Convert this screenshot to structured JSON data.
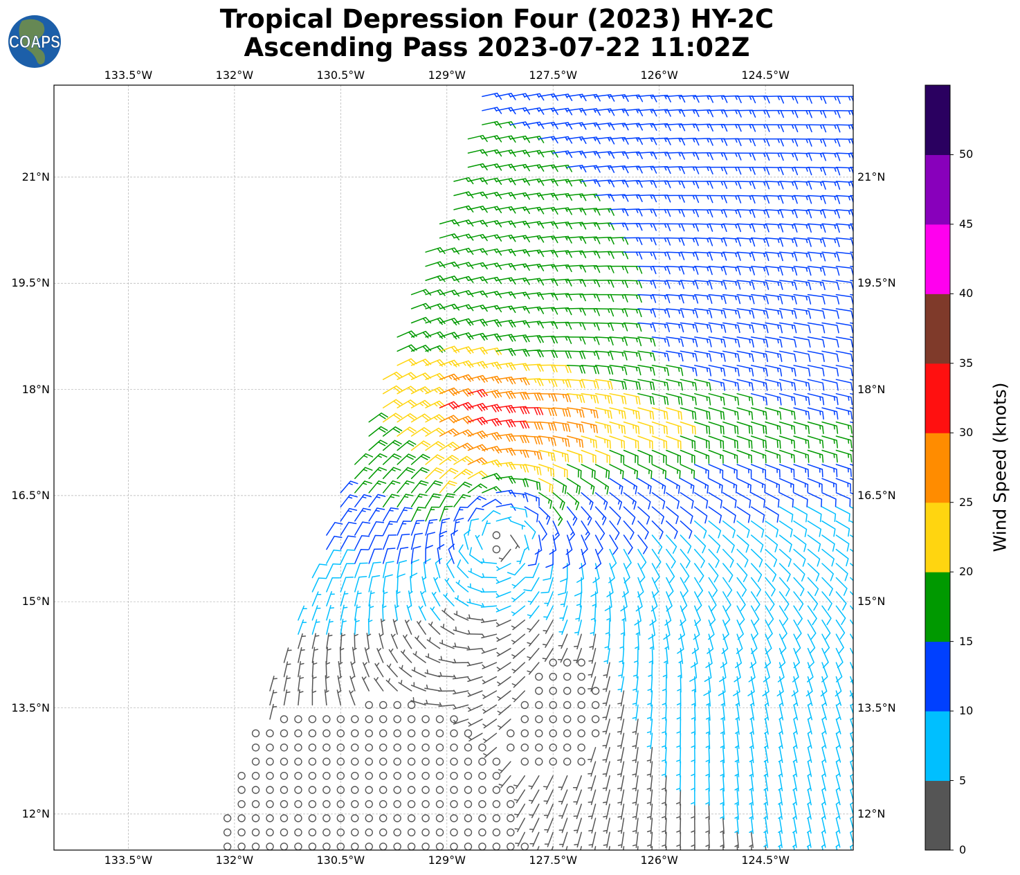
{
  "title": {
    "line1": "Tropical Depression Four (2023) HY-2C",
    "line2": "Ascending Pass 2023-07-22 11:02Z"
  },
  "logo": {
    "text": "COAPS"
  },
  "chart_data": {
    "type": "barbs",
    "map_extent": {
      "lon_west": -134.55,
      "lon_east": -123.26,
      "lat_south": 11.49,
      "lat_north": 22.3
    },
    "lon_ticks": [
      -133.5,
      -132,
      -130.5,
      -129,
      -127.5,
      -126,
      -124.5
    ],
    "lon_tick_labels": [
      "133.5°W",
      "132°W",
      "130.5°W",
      "129°W",
      "127.5°W",
      "126°W",
      "124.5°W"
    ],
    "lat_ticks": [
      21,
      19.5,
      18,
      16.5,
      15,
      13.5,
      12
    ],
    "lat_tick_labels": [
      "21°N",
      "19.5°N",
      "18°N",
      "16.5°N",
      "15°N",
      "13.5°N",
      "12°N"
    ],
    "grid": true,
    "storm_center": {
      "lon": -128.3,
      "lat": 16.25
    },
    "light_wind_center": {
      "lon": -127.3,
      "lat": 13.6
    },
    "enhanced_band_lat": 17.5,
    "barb_spacing_deg": 0.2,
    "colorbar": {
      "label": "Wind Speed (knots)",
      "range": [
        0,
        55
      ],
      "tick_values": [
        0,
        5,
        10,
        15,
        20,
        25,
        30,
        35,
        40,
        45,
        50
      ],
      "tick_labels": [
        "0",
        "5",
        "10",
        "15",
        "20",
        "25",
        "30",
        "35",
        "40",
        "45",
        "50"
      ],
      "bin_colors": [
        "#555555",
        "#00bfff",
        "#0040ff",
        "#009900",
        "#ffd510",
        "#ff8c00",
        "#ff1010",
        "#7f3a2a",
        "#ff00ee",
        "#8800bb",
        "#2a0060"
      ]
    }
  }
}
